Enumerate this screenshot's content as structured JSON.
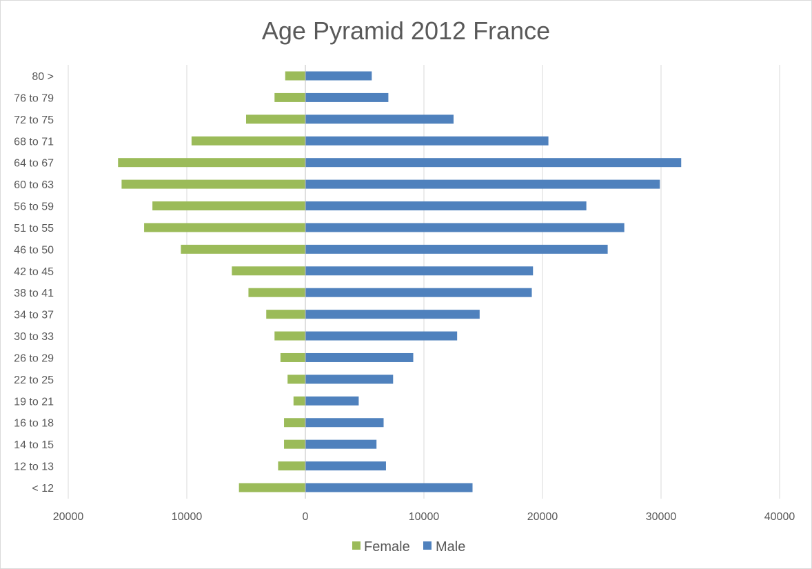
{
  "chart_data": {
    "type": "bar",
    "orientation": "horizontal",
    "title": "Age Pyramid 2012 France",
    "xlabel": "",
    "ylabel": "",
    "categories": [
      "< 12",
      "12 to 13",
      "14 to 15",
      "16 to 18",
      "19 to 21",
      "22 to 25",
      "26 to 29",
      "30 to 33",
      "34 to 37",
      "38 to 41",
      "42 to 45",
      "46 to 50",
      "51 to 55",
      "56 to 59",
      "60 to 63",
      "64 to 67",
      "68 to 71",
      "72 to 75",
      "76 to 79",
      "80 >"
    ],
    "series": [
      {
        "name": "Female",
        "color": "#9bbb59",
        "values": [
          -5600,
          -2300,
          -1800,
          -1800,
          -1000,
          -1500,
          -2100,
          -2600,
          -3300,
          -4800,
          -6200,
          -10500,
          -13600,
          -12900,
          -15500,
          -15800,
          -9600,
          -5000,
          -2600,
          -1700
        ]
      },
      {
        "name": "Male",
        "color": "#4f81bd",
        "values": [
          14100,
          6800,
          6000,
          6600,
          4500,
          7400,
          9100,
          12800,
          14700,
          19100,
          19200,
          25500,
          26900,
          23700,
          29900,
          31700,
          20500,
          12500,
          7000,
          5600
        ]
      }
    ],
    "xlim": [
      -20000,
      40000
    ],
    "xticks": [
      -20000,
      -10000,
      0,
      10000,
      20000,
      30000,
      40000
    ],
    "xtick_labels": [
      "20000",
      "10000",
      "0",
      "10000",
      "20000",
      "30000",
      "40000"
    ],
    "grid": true,
    "legend": "bottom"
  }
}
